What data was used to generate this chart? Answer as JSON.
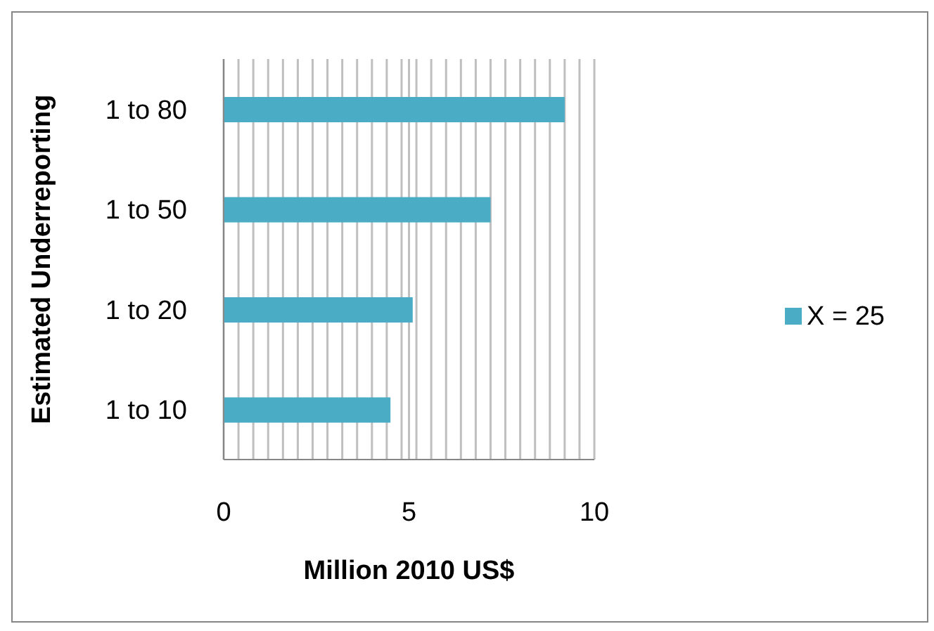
{
  "chart_data": {
    "type": "bar",
    "orientation": "horizontal",
    "xlabel": "Million 2010 US$",
    "ylabel": "Estimated Underreporting",
    "categories": [
      "1 to 80",
      "1 to 50",
      "1 to 20",
      "1 to 10"
    ],
    "series": [
      {
        "name": "X = 25",
        "color": "#4bacc6",
        "values": [
          9.2,
          7.2,
          5.1,
          4.5
        ]
      }
    ],
    "xlim": [
      0,
      10
    ],
    "xticks": [
      0,
      {
        "value": 0.4,
        "label": null
      },
      {
        "value": 0.8,
        "label": null
      },
      {
        "value": 1.2,
        "label": null
      },
      {
        "value": 1.6,
        "label": null
      },
      {
        "value": 2,
        "label": null
      },
      {
        "value": 2.4,
        "label": null
      },
      {
        "value": 2.8,
        "label": null
      },
      {
        "value": 3.2,
        "label": null
      },
      {
        "value": 3.6,
        "label": null
      },
      {
        "value": 4,
        "label": null
      },
      {
        "value": 4.4,
        "label": null
      },
      {
        "value": 4.8,
        "label": null
      },
      5,
      {
        "value": 5.2,
        "label": null
      },
      {
        "value": 5.6,
        "label": null
      },
      {
        "value": 6,
        "label": null
      },
      {
        "value": 6.4,
        "label": null
      },
      {
        "value": 6.8,
        "label": null
      },
      {
        "value": 7.2,
        "label": null
      },
      {
        "value": 7.6,
        "label": null
      },
      {
        "value": 8,
        "label": null
      },
      {
        "value": 8.4,
        "label": null
      },
      {
        "value": 8.8,
        "label": null
      },
      {
        "value": 9.2,
        "label": null
      },
      {
        "value": 9.6,
        "label": null
      },
      10
    ],
    "grid": "x",
    "legend": "right"
  }
}
